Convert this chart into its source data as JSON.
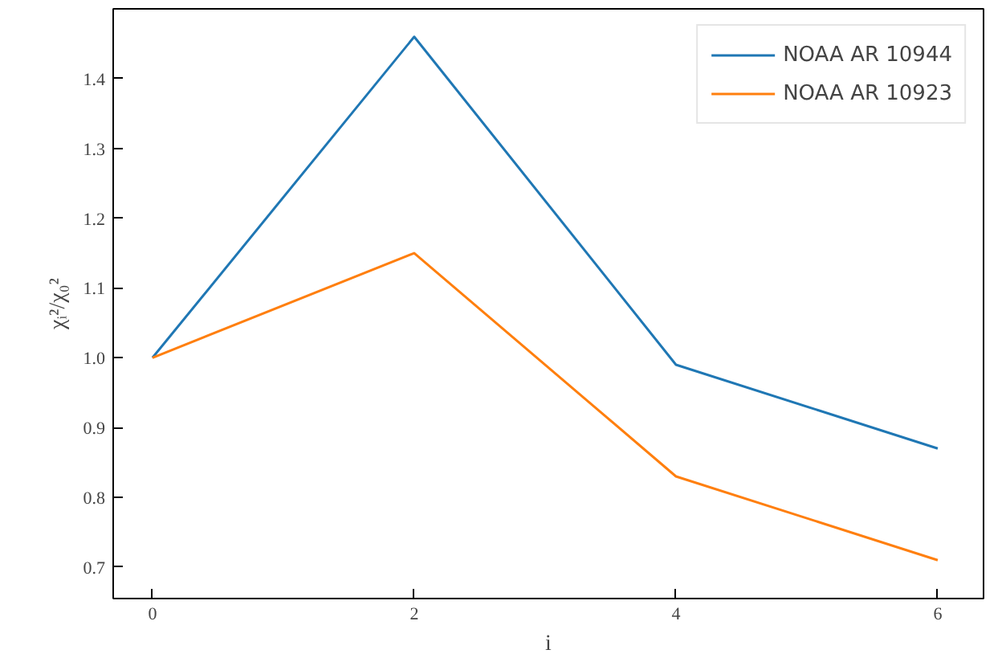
{
  "chart_data": {
    "type": "line",
    "xlabel": "i",
    "ylabel": "χᵢ²/χ₀²",
    "x": [
      0,
      2,
      4,
      6
    ],
    "series": [
      {
        "name": "NOAA AR 10944",
        "color": "#1f77b4",
        "values": [
          1.0,
          1.46,
          0.99,
          0.87
        ]
      },
      {
        "name": "NOAA AR 10923",
        "color": "#ff7f0e",
        "values": [
          1.0,
          1.15,
          0.83,
          0.71
        ]
      }
    ],
    "xlim": [
      -0.3,
      6.35
    ],
    "ylim": [
      0.655,
      1.5
    ],
    "xticks": [
      0,
      2,
      4,
      6
    ],
    "yticks": [
      {
        "value": 0.7,
        "label": "0.7"
      },
      {
        "value": 0.8,
        "label": "0.8"
      },
      {
        "value": 0.9,
        "label": "0.9"
      },
      {
        "value": 1.0,
        "label": "1.0"
      },
      {
        "value": 1.1,
        "label": "1.1"
      },
      {
        "value": 1.2,
        "label": "1.2"
      },
      {
        "value": 1.3,
        "label": "1.3"
      },
      {
        "value": 1.4,
        "label": "1.4"
      }
    ],
    "grid": false,
    "legend": "top right",
    "marker": "none",
    "line_style": "solid"
  }
}
